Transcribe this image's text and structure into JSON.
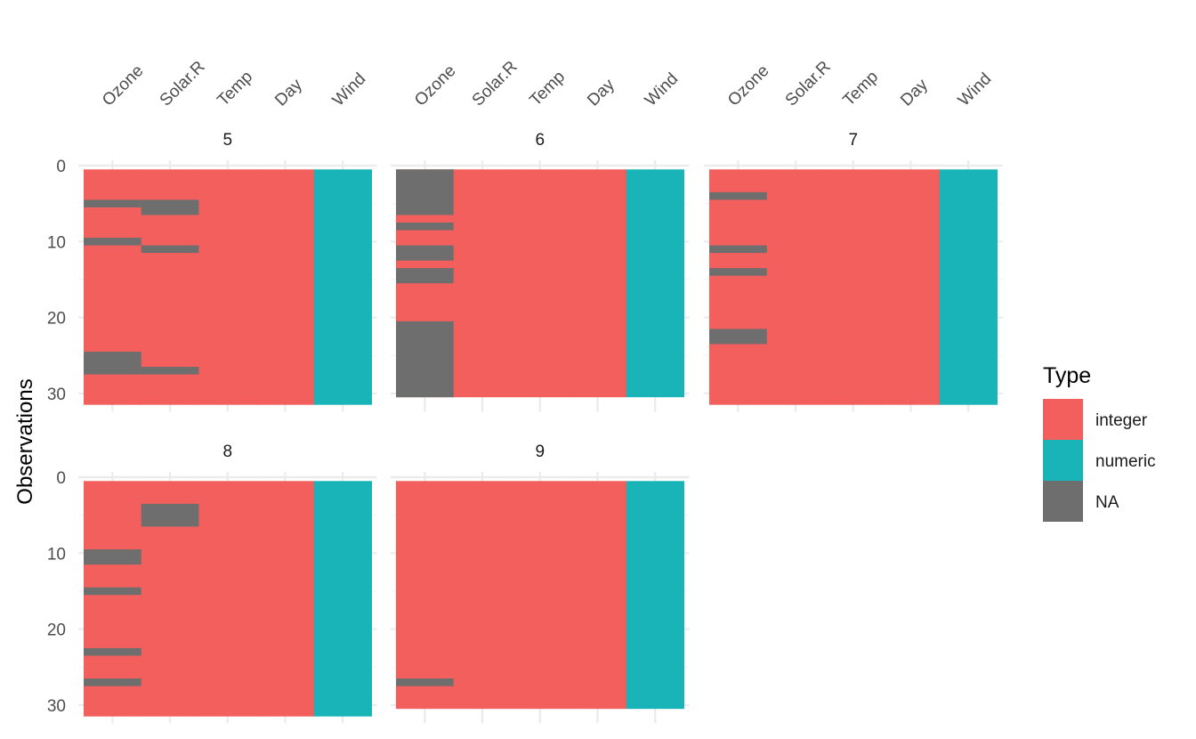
{
  "chart_data": {
    "type": "heatmap",
    "title": "",
    "xlabel": "",
    "ylabel": "Observations",
    "columns": [
      "Ozone",
      "Solar.R",
      "Temp",
      "Day",
      "Wind"
    ],
    "column_types": [
      "integer",
      "integer",
      "integer",
      "integer",
      "numeric"
    ],
    "y_ticks": [
      0,
      10,
      20,
      30
    ],
    "ylim": [
      0,
      31
    ],
    "grid": true,
    "legend": {
      "title": "Type",
      "position": "right",
      "entries": [
        {
          "label": "integer",
          "color": "#F8766D"
        },
        {
          "label": "numeric",
          "color": "#00BFC4"
        },
        {
          "label": "NA",
          "color": "#6E6E6E"
        }
      ]
    },
    "colors": {
      "integer": "#F25F5C",
      "numeric": "#19B4B8",
      "NA": "#6E6E6E"
    },
    "facets": [
      {
        "label": "5",
        "n_obs": 31,
        "missing": {
          "Ozone": [
            5,
            10,
            25,
            26,
            27
          ],
          "Solar.R": [
            5,
            6,
            11,
            27
          ]
        }
      },
      {
        "label": "6",
        "n_obs": 30,
        "missing": {
          "Ozone": [
            1,
            2,
            3,
            4,
            5,
            6,
            8,
            11,
            12,
            14,
            15,
            21,
            22,
            23,
            24,
            25,
            26,
            27,
            28,
            29,
            30
          ],
          "Solar.R": []
        }
      },
      {
        "label": "7",
        "n_obs": 31,
        "missing": {
          "Ozone": [
            4,
            11,
            14,
            22,
            23
          ],
          "Solar.R": []
        }
      },
      {
        "label": "8",
        "n_obs": 31,
        "missing": {
          "Ozone": [
            10,
            11,
            15,
            23,
            27
          ],
          "Solar.R": [
            4,
            5,
            6
          ]
        }
      },
      {
        "label": "9",
        "n_obs": 30,
        "missing": {
          "Ozone": [
            27
          ],
          "Solar.R": []
        }
      }
    ]
  }
}
